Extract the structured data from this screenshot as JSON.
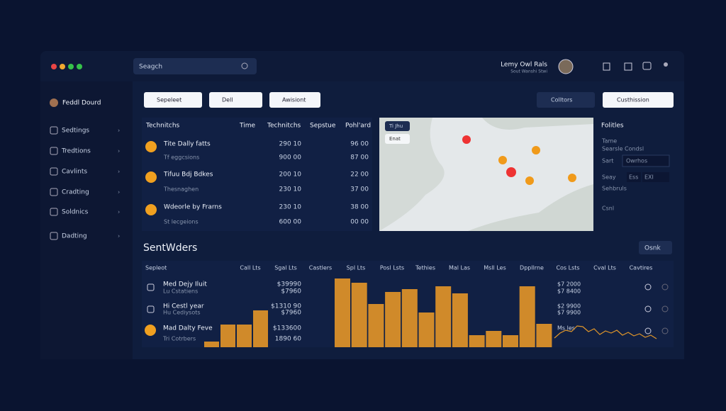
{
  "window": {
    "search": "Seagch",
    "user_name": "Lemy Owl Rals",
    "user_sub": "Sout Wanshi Stwi"
  },
  "sidebar": {
    "profile": "Feddl Dourd",
    "items": [
      "Sedtings",
      "Tredtions",
      "Cavlints",
      "Cradting",
      "Soldnics",
      "Dadting"
    ]
  },
  "filters": {
    "left": [
      "Sepeleet",
      "Dell",
      "Awisiont"
    ],
    "right": [
      "Colltors",
      "Custhission"
    ]
  },
  "table1": {
    "headers": [
      "Technitchs",
      "Time",
      "Technitchs",
      "Sepstue",
      "Pohl'ard"
    ],
    "rows": [
      [
        "Tite Dally fatts",
        "Tf eggcsions",
        "290 10",
        "96 00",
        "900 00",
        "87 00"
      ],
      [
        "Tifuu Bdj Bdkes",
        "Thesnaghen",
        "200 10",
        "22 00",
        "230 10",
        "37 00"
      ],
      [
        "Wdeorle by Frarns",
        "St lecgeions",
        "230 10",
        "38 00",
        "600 00",
        "00 00"
      ]
    ]
  },
  "map": {
    "buttons": [
      "Ti Jhu",
      "Enat"
    ]
  },
  "panel": {
    "title": "Folitles",
    "label1": "Tame",
    "label2": "Searsle Condsl",
    "label3": "Sart",
    "select": "Owrhos",
    "label4": "Seay",
    "opt1": "Ess",
    "opt2": "EXI",
    "label5": "Sehbruls",
    "label6": "Csnl"
  },
  "section": {
    "title": "SentWders",
    "button": "Osnk",
    "headers": [
      "Sepleot",
      "Call Lts",
      "Sgal Lts",
      "Castlers",
      "Spl Lts",
      "Posl Lsts",
      "Tethies",
      "Mal Las",
      "Msll Les",
      "Dppllrne",
      "Cos Lsts",
      "Cval Lts",
      "Cavtires"
    ],
    "rows": [
      [
        "Med Dejy Iluit",
        "Lu Cstatiens",
        "$39990",
        "$7960",
        "$7 2000",
        "$7 8400"
      ],
      [
        "Hi Cestl year",
        "Hu Cediysots",
        "$1310 90",
        "$7960",
        "$2 9900",
        "$7 9900"
      ],
      [
        "Mad Dalty Feve",
        "Tri Cotrbers",
        "$133600",
        "1890 60",
        "Ms les",
        ""
      ]
    ]
  },
  "bars": {
    "values": [
      8,
      32,
      32,
      52,
      97,
      91,
      61,
      78,
      82,
      49,
      86,
      76,
      17,
      23,
      17,
      86,
      33
    ]
  },
  "sparkline": {
    "values": [
      5,
      12,
      16,
      14,
      22,
      21,
      14,
      18,
      10,
      15,
      12,
      16,
      9,
      13,
      8,
      11,
      6,
      9,
      4
    ]
  }
}
